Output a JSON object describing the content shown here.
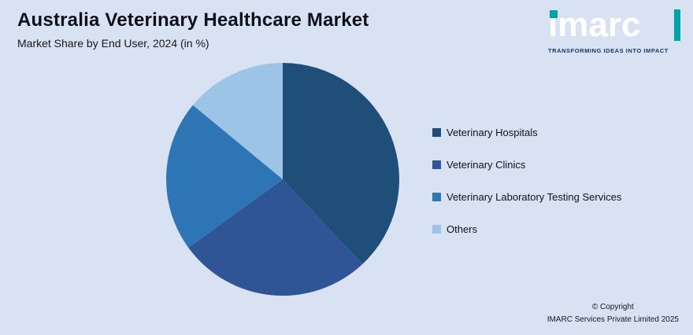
{
  "header": {
    "title": "Australia Veterinary Healthcare Market",
    "subtitle": "Market Share by End User, 2024 (in %)"
  },
  "logo": {
    "wordmark": "imarc",
    "tagline": "TRANSFORMING IDEAS INTO IMPACT",
    "accent_color": "#00a3a6",
    "text_color": "#ffffff"
  },
  "copyright": {
    "line1": "© Copyright",
    "line2": "IMARC Services Private Limited 2025"
  },
  "chart_data": {
    "type": "pie",
    "title": "Australia Veterinary Healthcare Market",
    "subtitle": "Market Share by End User, 2024 (in %)",
    "categories": [
      "Veterinary Hospitals",
      "Veterinary Clinics",
      "Veterinary Laboratory Testing Services",
      "Others"
    ],
    "values": [
      38,
      27,
      21,
      14
    ],
    "colors": [
      "#1f4e79",
      "#2f5597",
      "#2e75b6",
      "#9dc3e6"
    ],
    "legend_position": "right",
    "start_angle_deg": 0,
    "direction": "clockwise",
    "background_color": "#d9e2f2"
  }
}
